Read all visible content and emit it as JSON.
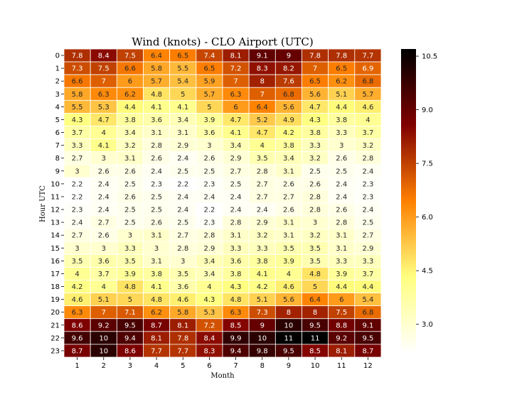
{
  "chart_data": {
    "type": "heatmap",
    "title": "Wind (knots) - CLO Airport (UTC)",
    "xlabel": "Month",
    "ylabel": "Hour UTC",
    "x_categories": [
      "1",
      "2",
      "3",
      "4",
      "5",
      "6",
      "7",
      "8",
      "9",
      "10",
      "11",
      "12"
    ],
    "y_categories": [
      "0",
      "1",
      "2",
      "3",
      "4",
      "5",
      "6",
      "7",
      "8",
      "9",
      "10",
      "11",
      "12",
      "13",
      "14",
      "15",
      "16",
      "17",
      "18",
      "19",
      "20",
      "21",
      "22",
      "23"
    ],
    "values": [
      [
        7.8,
        8.4,
        7.5,
        6.4,
        6.5,
        7.4,
        8.1,
        9.1,
        9,
        7.8,
        7.8,
        7.7
      ],
      [
        7.3,
        7.5,
        6.6,
        5.8,
        5.5,
        6.5,
        7.2,
        8.3,
        8.2,
        7,
        6.5,
        6.9
      ],
      [
        6.6,
        7,
        6,
        5.7,
        5.4,
        5.9,
        7,
        8,
        7.6,
        6.5,
        6.2,
        6.8
      ],
      [
        5.8,
        6.3,
        6.2,
        4.8,
        5,
        5.7,
        6.3,
        7,
        6.8,
        5.6,
        5.1,
        5.7
      ],
      [
        5.5,
        5.3,
        4.4,
        4.1,
        4.1,
        5,
        6,
        6.4,
        5.6,
        4.7,
        4.4,
        4.6
      ],
      [
        4.3,
        4.7,
        3.8,
        3.6,
        3.4,
        3.9,
        4.7,
        5.2,
        4.9,
        4.3,
        3.8,
        4
      ],
      [
        3.7,
        4,
        3.4,
        3.1,
        3.1,
        3.6,
        4.1,
        4.7,
        4.2,
        3.8,
        3.3,
        3.7
      ],
      [
        3.3,
        4.1,
        3.2,
        2.8,
        2.9,
        3,
        3.4,
        4,
        3.8,
        3.3,
        3,
        3.2
      ],
      [
        2.7,
        3,
        3.1,
        2.6,
        2.4,
        2.6,
        2.9,
        3.5,
        3.4,
        3.2,
        2.6,
        2.8
      ],
      [
        3,
        2.6,
        2.6,
        2.4,
        2.5,
        2.5,
        2.7,
        2.8,
        3.1,
        2.5,
        2.5,
        2.4
      ],
      [
        2.2,
        2.4,
        2.5,
        2.3,
        2.2,
        2.3,
        2.5,
        2.7,
        2.6,
        2.6,
        2.4,
        2.3
      ],
      [
        2.2,
        2.4,
        2.6,
        2.5,
        2.4,
        2.4,
        2.4,
        2.7,
        2.7,
        2.8,
        2.4,
        2.3
      ],
      [
        2.3,
        2.4,
        2.5,
        2.5,
        2.4,
        2.2,
        2.4,
        2.4,
        2.6,
        2.8,
        2.6,
        2.4
      ],
      [
        2.4,
        2.7,
        2.5,
        2.6,
        2.5,
        2.3,
        2.8,
        2.9,
        3.1,
        3,
        2.8,
        2.5
      ],
      [
        2.7,
        2.6,
        3,
        3.1,
        2.7,
        2.8,
        3.1,
        3.2,
        3.1,
        3.2,
        3.1,
        2.7
      ],
      [
        3,
        3,
        3.3,
        3,
        2.8,
        2.9,
        3.3,
        3.3,
        3.5,
        3.5,
        3.1,
        2.9
      ],
      [
        3.5,
        3.6,
        3.5,
        3.1,
        3,
        3.4,
        3.6,
        3.8,
        3.9,
        3.5,
        3.3,
        3.3
      ],
      [
        4,
        3.7,
        3.9,
        3.8,
        3.5,
        3.4,
        3.8,
        4.1,
        4,
        4.8,
        3.9,
        3.7
      ],
      [
        4.2,
        4,
        4.8,
        4.1,
        3.6,
        4,
        4.3,
        4.2,
        4.6,
        5,
        4.4,
        4.4
      ],
      [
        4.6,
        5.1,
        5,
        4.8,
        4.6,
        4.3,
        4.8,
        5.1,
        5.6,
        6.4,
        6,
        5.4
      ],
      [
        6.3,
        7,
        7.1,
        6.2,
        5.8,
        5.3,
        6.3,
        7.3,
        8,
        8,
        7.5,
        6.8
      ],
      [
        8.6,
        9.2,
        9.5,
        8.7,
        8.1,
        7.2,
        8.5,
        9,
        10,
        9.5,
        8.8,
        9.1
      ],
      [
        9.6,
        10,
        9.4,
        8.1,
        7.8,
        8.4,
        9.9,
        10,
        11,
        11,
        9.2,
        9.5
      ],
      [
        8.7,
        10,
        8.6,
        7.7,
        7.7,
        8.3,
        9.4,
        9.8,
        9.5,
        8.5,
        8.1,
        8.7
      ]
    ],
    "colormap": "afmhot_r",
    "vmin": 2.2,
    "vmax": 10.7,
    "colorbar_ticks": [
      "3.0",
      "4.5",
      "6.0",
      "7.5",
      "9.0",
      "10.5"
    ],
    "cell_border_color": "#ffffff",
    "grid": false
  }
}
